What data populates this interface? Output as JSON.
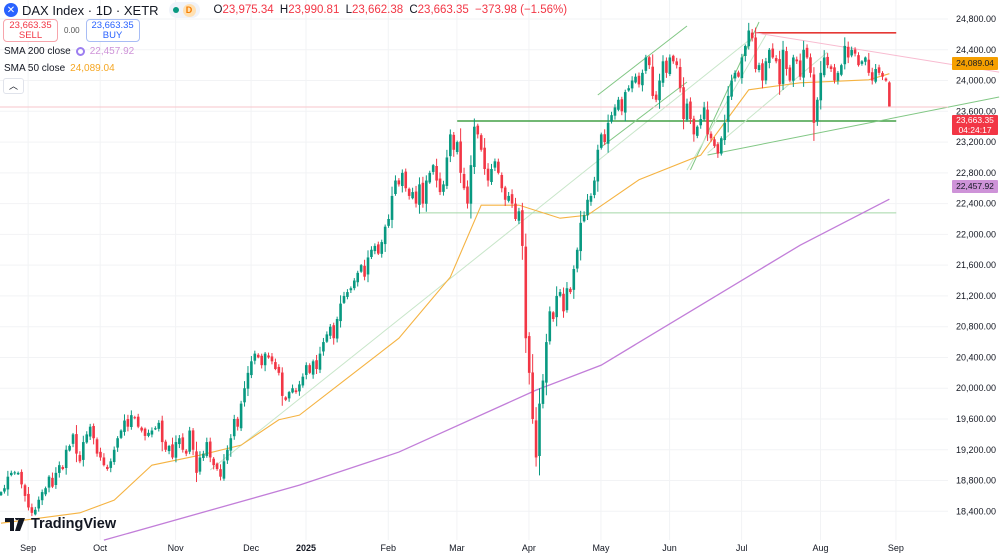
{
  "header": {
    "symbol": "DAX Index · 1D · XETR",
    "interval_badge": "D",
    "open_label": "O",
    "open": "23,975.34",
    "high_label": "H",
    "high": "23,990.81",
    "low_label": "L",
    "low": "23,662.38",
    "close_label": "C",
    "close": "23,663.35",
    "change": "−373.98 (−1.56%)"
  },
  "trade": {
    "sell_price": "23,663.35",
    "sell_label": "SELL",
    "spread": "0.00",
    "buy_price": "23,663.35",
    "buy_label": "BUY"
  },
  "indicators": [
    {
      "name": "SMA 200 close",
      "value": "22,457.92",
      "color": "#ce93d8"
    },
    {
      "name": "SMA 50 close",
      "value": "24,089.04",
      "color": "#f5a623"
    }
  ],
  "price_labels": {
    "sma50": "24,089.04",
    "last": "23,663.35",
    "countdown": "04:24:17",
    "sma200": "22,457.92"
  },
  "brand": "TradingView",
  "colors": {
    "up": "#089981",
    "down": "#f23645",
    "sma50": "#f5b342",
    "sma200": "#c27ed9",
    "trend": "#4caf50",
    "resistance": "#e53935"
  },
  "chart_data": {
    "type": "candlestick",
    "x_tick_labels": [
      {
        "label": "Sep",
        "bar": 5
      },
      {
        "label": "Oct",
        "bar": 26
      },
      {
        "label": "Nov",
        "bar": 48
      },
      {
        "label": "Dec",
        "bar": 70
      },
      {
        "label": "2025",
        "bar": 86
      },
      {
        "label": "Feb",
        "bar": 110
      },
      {
        "label": "Mar",
        "bar": 130
      },
      {
        "label": "Apr",
        "bar": 151
      },
      {
        "label": "May",
        "bar": 172
      },
      {
        "label": "Jun",
        "bar": 192
      },
      {
        "label": "Jul",
        "bar": 213
      },
      {
        "label": "Aug",
        "bar": 236
      },
      {
        "label": "Sep",
        "bar": 258
      }
    ],
    "y_ticks": [
      "24,800.00",
      "24,400.00",
      "24,000.00",
      "23,600.00",
      "23,200.00",
      "22,800.00",
      "22,400.00",
      "22,000.00",
      "21,600.00",
      "21,200.00",
      "20,800.00",
      "20,400.00",
      "20,000.00",
      "19,600.00",
      "19,200.00",
      "18,800.00",
      "18,400.00"
    ],
    "ylim": [
      18400,
      24800
    ],
    "closes": [
      18650,
      18700,
      18850,
      18900,
      18906,
      18900,
      18750,
      18600,
      18450,
      18380,
      18420,
      18550,
      18650,
      18700,
      18850,
      18720,
      18900,
      19000,
      18950,
      19200,
      19250,
      19400,
      19150,
      19050,
      19300,
      19400,
      19500,
      19350,
      19150,
      19100,
      19000,
      18950,
      19050,
      19200,
      19350,
      19450,
      19580,
      19500,
      19650,
      19620,
      19500,
      19450,
      19380,
      19420,
      19450,
      19480,
      19550,
      19300,
      19200,
      19250,
      19100,
      19300,
      19350,
      19200,
      19150,
      19450,
      19200,
      18900,
      19100,
      19150,
      19300,
      19100,
      19000,
      18950,
      18850,
      19050,
      19200,
      19350,
      19600,
      19500,
      19800,
      20000,
      20200,
      20350,
      20450,
      20400,
      20300,
      20450,
      20400,
      20350,
      20250,
      20200,
      19900,
      19850,
      19950,
      20000,
      19950,
      20050,
      20150,
      20300,
      20200,
      20350,
      20250,
      20450,
      20600,
      20700,
      20800,
      20650,
      20900,
      21100,
      21200,
      21250,
      21300,
      21400,
      21500,
      21600,
      21450,
      21700,
      21800,
      21850,
      21750,
      21900,
      22100,
      22200,
      22500,
      22700,
      22650,
      22800,
      22600,
      22500,
      22550,
      22400,
      22650,
      22400,
      22700,
      22800,
      22900,
      22700,
      22550,
      22650,
      23000,
      23300,
      23100,
      23200,
      22800,
      22600,
      22400,
      22900,
      23400,
      23300,
      23100,
      22850,
      22700,
      22850,
      22950,
      22800,
      22600,
      22450,
      22500,
      22400,
      22200,
      22300,
      21850,
      20650,
      20200,
      19600,
      19100,
      19800,
      20100,
      20600,
      21000,
      20900,
      21200,
      21250,
      21000,
      21300,
      21250,
      21550,
      21800,
      22150,
      22250,
      22450,
      22500,
      22700,
      23100,
      23300,
      23200,
      23450,
      23550,
      23650,
      23750,
      23600,
      23850,
      23900,
      24000,
      24050,
      23950,
      24100,
      24300,
      24200,
      23800,
      23750,
      24000,
      24250,
      24100,
      24300,
      24250,
      24200,
      23900,
      23500,
      23700,
      23500,
      23300,
      23400,
      23500,
      23650,
      23300,
      23250,
      23150,
      23050,
      23250,
      23450,
      23800,
      24000,
      24100,
      24050,
      24300,
      24450,
      24650,
      24550,
      24150,
      24200,
      24000,
      24250,
      24400,
      24300,
      24250,
      23950,
      24400,
      24150,
      24000,
      24300,
      24250,
      24050,
      24400,
      24300,
      24100,
      23450,
      23750,
      24100,
      24300,
      24200,
      24150,
      24000,
      24100,
      24200,
      24450,
      24300,
      24400,
      24350,
      24200,
      24250,
      24300,
      24100,
      24000,
      24150,
      24100,
      24050,
      24000,
      23663.35
    ],
    "last_bar": {
      "open": 23975.34,
      "high": 23990.81,
      "low": 23662.38,
      "close": 23663.35
    },
    "sma50": [
      [
        0,
        18245
      ],
      [
        23,
        18380
      ],
      [
        33,
        18545
      ],
      [
        44,
        19000
      ],
      [
        58,
        19130
      ],
      [
        70,
        19260
      ],
      [
        81,
        19590
      ],
      [
        87,
        19650
      ],
      [
        116,
        20650
      ],
      [
        131,
        21445
      ],
      [
        140,
        22380
      ],
      [
        151,
        22380
      ],
      [
        163,
        22210
      ],
      [
        171,
        22250
      ],
      [
        186,
        22710
      ],
      [
        204,
        23030
      ],
      [
        218,
        23880
      ],
      [
        233,
        23970
      ],
      [
        253,
        24010
      ],
      [
        259,
        24089.04
      ]
    ],
    "sma200": [
      [
        30,
        18025
      ],
      [
        87,
        18740
      ],
      [
        116,
        19170
      ],
      [
        156,
        19975
      ],
      [
        175,
        20300
      ],
      [
        204,
        21080
      ],
      [
        233,
        21860
      ],
      [
        259,
        22457.92
      ]
    ],
    "drawings": [
      {
        "kind": "trend",
        "color": "#c8e6c9",
        "from": [
          61,
          18937
        ],
        "to": [
          220,
          24592
        ]
      },
      {
        "kind": "horizontal",
        "color": "#43a047",
        "from": [
          133,
          23474
        ],
        "to": [
          261,
          23474
        ]
      },
      {
        "kind": "horizontal",
        "color": "#a5d6a7",
        "from": [
          122,
          22280
        ],
        "to": [
          261,
          22280
        ]
      },
      {
        "kind": "horizontal",
        "color": "#e53935",
        "from": [
          220,
          24620
        ],
        "to": [
          261,
          24620
        ]
      },
      {
        "kind": "trend",
        "color": "#f8bbd0",
        "from": [
          220,
          24620
        ],
        "to": [
          291,
          24110
        ]
      },
      {
        "kind": "channel",
        "color": "#81c784",
        "from": [
          174,
          23812
        ],
        "to": [
          200,
          24709
        ]
      },
      {
        "kind": "channel",
        "color": "#81c784",
        "from": [
          175,
          23136
        ],
        "to": [
          200,
          23981
        ]
      },
      {
        "kind": "channel",
        "color": "#81c784",
        "from": [
          201,
          22837
        ],
        "to": [
          221,
          24761
        ]
      },
      {
        "kind": "channel",
        "color": "#c8e6c9",
        "from": [
          200,
          22837
        ],
        "to": [
          223,
          24592
        ]
      },
      {
        "kind": "channel",
        "color": "#c8e6c9",
        "from": [
          206,
          23058
        ],
        "to": [
          241,
          24371
        ]
      },
      {
        "kind": "trend",
        "color": "#81c784",
        "from": [
          206,
          23032
        ],
        "to": [
          291,
          23786
        ]
      }
    ]
  }
}
